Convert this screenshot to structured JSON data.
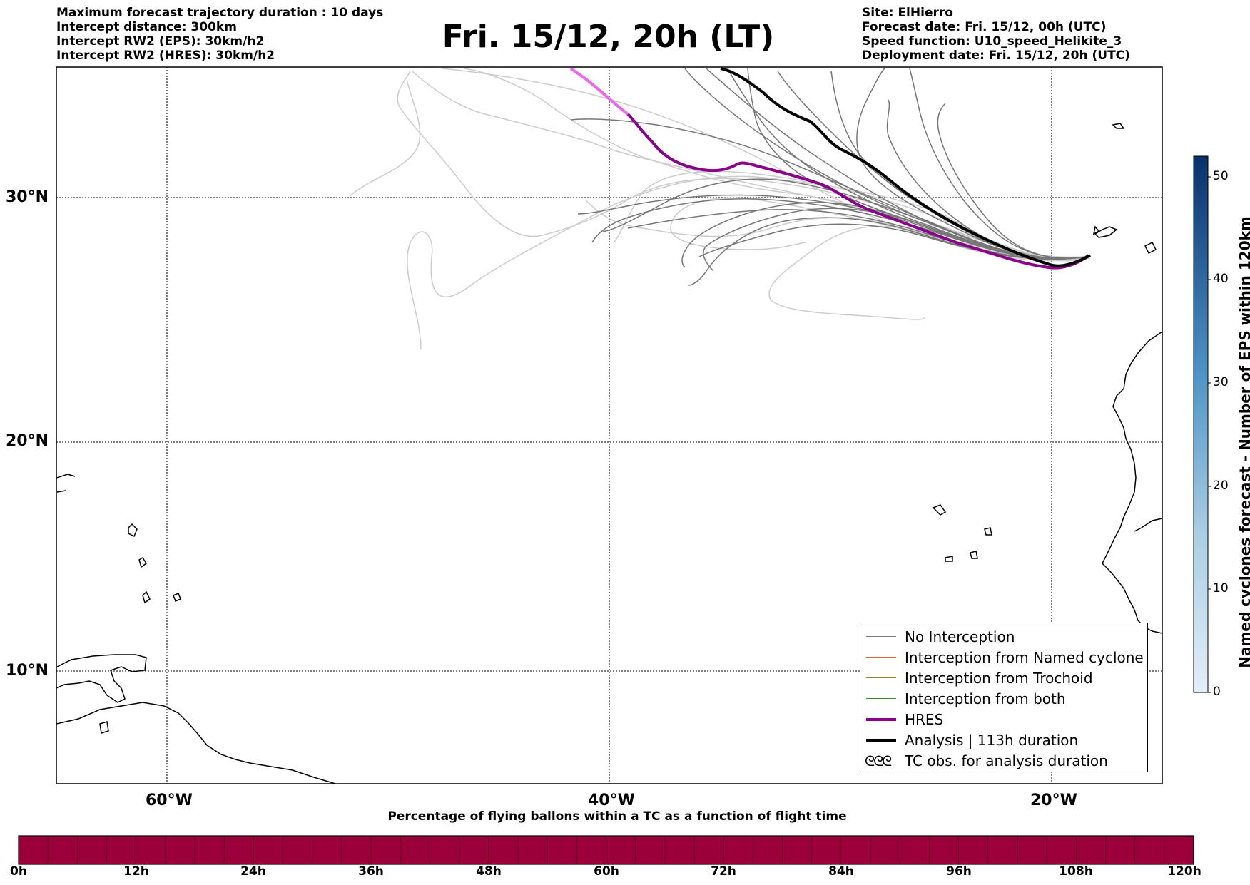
{
  "header_left": [
    "Maximum forecast trajectory duration : 10 days",
    "Intercept distance: 300km",
    "Intercept RW2 (EPS):  30km/h2",
    "Intercept RW2 (HRES): 30km/h2"
  ],
  "header_right": [
    "Site: ElHierro",
    "Forecast date: Fri. 15/12, 00h (UTC)",
    "Speed function: U10_speed_Helikite_3",
    "Deployment date: Fri. 15/12, 20h (UTC)"
  ],
  "title": "Fri. 15/12, 20h (LT)",
  "axes": {
    "x_ticks": [
      "60°W",
      "40°W",
      "20°W"
    ],
    "y_ticks": [
      "30°N",
      "20°N",
      "10°N"
    ]
  },
  "legend": {
    "items": [
      {
        "label": "No Interception",
        "color": "#777777"
      },
      {
        "label": "Interception from Named cyclone",
        "color": "#e8612c"
      },
      {
        "label": "Interception from Trochoid",
        "color": "#8a8a28"
      },
      {
        "label": "Interception from both",
        "color": "#2e8b2e"
      },
      {
        "label": "HRES",
        "color": "#8b008b"
      },
      {
        "label": "Analysis | 113h duration",
        "color": "#000000"
      },
      {
        "label": "TC obs. for analysis duration",
        "symbol": "ᘓᘓᘓ"
      }
    ]
  },
  "colorbar_right": {
    "title": "Named cyclones forecast - Number of EPS within 120km",
    "ticks": [
      "0",
      "10",
      "20",
      "30",
      "40",
      "50"
    ],
    "color_low": "#e3eef9",
    "color_high": "#08306b"
  },
  "colorbar_bottom": {
    "title": "Percentage of flying ballons within a TC as a function of flight time",
    "ticks": [
      "0h",
      "12h",
      "24h",
      "36h",
      "48h",
      "60h",
      "72h",
      "84h",
      "96h",
      "108h",
      "120h"
    ],
    "color": "#9c003a"
  }
}
